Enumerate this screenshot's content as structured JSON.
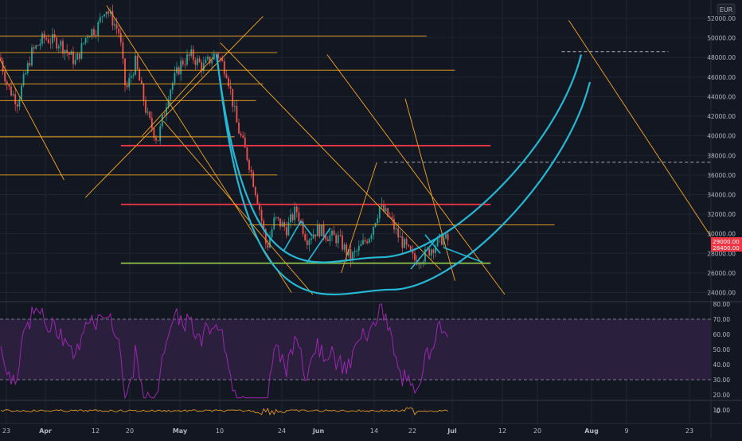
{
  "chart_data": {
    "type": "line",
    "currency_label": "EUR",
    "colors": {
      "background": "#131722",
      "grid": "#1f2433",
      "candle_up": "#26a69a",
      "candle_down": "#ef5350",
      "orange": "#f5a623",
      "red_level": "#f23645",
      "green_level": "#8bc34a",
      "cup": "#25b8d4",
      "rsi_line": "#9c27b0",
      "rsi_band": "#2a1f3d",
      "osc_line": "#f5a623",
      "axis_text": "#b2b5be",
      "price_badge": "#f23645"
    },
    "price_axis": {
      "min": 23000,
      "max": 53500,
      "ticks": [
        "52000.00",
        "50000.00",
        "48000.00",
        "46000.00",
        "44000.00",
        "42000.00",
        "40000.00",
        "38000.00",
        "36000.00",
        "34000.00",
        "32000.00",
        "30000.00",
        "28000.00",
        "26000.00",
        "24000.00"
      ],
      "tick_values": [
        52000,
        50000,
        48000,
        46000,
        44000,
        42000,
        40000,
        38000,
        36000,
        34000,
        32000,
        30000,
        28000,
        26000,
        24000
      ]
    },
    "current_price": {
      "value": 28600,
      "label_top": "29000.00",
      "label_bottom": "28400.00"
    },
    "rsi_axis": {
      "ticks": [
        "80.00",
        "70.00",
        "60.00",
        "50.00",
        "40.00",
        "30.00",
        "20.00",
        "10.00"
      ],
      "tick_values": [
        80,
        70,
        60,
        50,
        40,
        30,
        20,
        10
      ],
      "upper_band": 70,
      "lower_band": 30
    },
    "oscillator_axis": {
      "ticks": [
        "0"
      ]
    },
    "time_axis": {
      "ticks": [
        "23",
        "Apr",
        "12",
        "20",
        "May",
        "10",
        "24",
        "Jun",
        "14",
        "22",
        "Jul",
        "12",
        "20",
        "Aug",
        "9",
        "23"
      ]
    },
    "horizontal_levels": [
      {
        "kind": "orange",
        "price": 50200,
        "from": 0,
        "to": 0.6
      },
      {
        "kind": "orange",
        "price": 48500,
        "from": 0,
        "to": 0.39
      },
      {
        "kind": "orange",
        "price": 46700,
        "from": 0,
        "to": 0.64
      },
      {
        "kind": "orange",
        "price": 45300,
        "from": 0,
        "to": 0.37
      },
      {
        "kind": "orange",
        "price": 43600,
        "from": 0,
        "to": 0.36
      },
      {
        "kind": "orange",
        "price": 39900,
        "from": 0,
        "to": 0.33
      },
      {
        "kind": "orange",
        "price": 36000,
        "from": 0,
        "to": 0.39
      },
      {
        "kind": "orange",
        "price": 30900,
        "from": 0.35,
        "to": 0.78
      },
      {
        "kind": "red",
        "price": 39000,
        "from": 0.17,
        "to": 0.69
      },
      {
        "kind": "red",
        "price": 33000,
        "from": 0.17,
        "to": 0.69
      },
      {
        "kind": "green",
        "price": 27000,
        "from": 0.17,
        "to": 0.69
      },
      {
        "kind": "dashed",
        "price": 48600,
        "from": 0.79,
        "to": 0.94
      },
      {
        "kind": "dashed",
        "price": 37300,
        "from": 0.54,
        "to": 1.0
      }
    ],
    "trend_lines": [
      {
        "x1": 0.0,
        "p1": 47800,
        "x2": 0.09,
        "p2": 35500
      },
      {
        "x1": 0.15,
        "p1": 53300,
        "x2": 0.41,
        "p2": 24000
      },
      {
        "x1": 0.31,
        "p1": 49500,
        "x2": 0.62,
        "p2": 26300
      },
      {
        "x1": 0.23,
        "p1": 41500,
        "x2": 0.44,
        "p2": 23800
      },
      {
        "x1": 0.46,
        "p1": 48300,
        "x2": 0.71,
        "p2": 23800
      },
      {
        "x1": 0.57,
        "p1": 43800,
        "x2": 0.64,
        "p2": 25200
      },
      {
        "x1": 0.8,
        "p1": 51800,
        "x2": 1.0,
        "p2": 29700
      },
      {
        "x1": 0.12,
        "p1": 33700,
        "x2": 0.37,
        "p2": 52200
      },
      {
        "x1": 0.48,
        "p1": 26000,
        "x2": 0.53,
        "p2": 37300
      },
      {
        "x1": 0.2,
        "p1": 40000,
        "x2": 0.3,
        "p2": 48000
      }
    ]
  }
}
